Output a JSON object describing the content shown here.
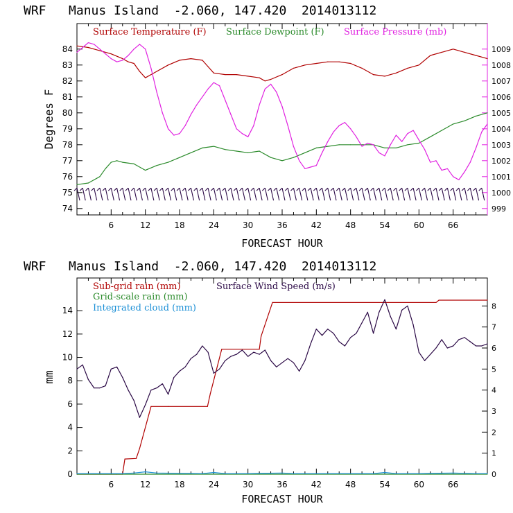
{
  "colors": {
    "temperature": "#b00000",
    "dewpoint": "#2a8a2a",
    "pressure": "#e020e0",
    "subgrid_rain": "#b00000",
    "gridscale_rain": "#2a8a2a",
    "cloud": "#1b8fd6",
    "wind": "#2a0845",
    "barb": "#2a0845"
  },
  "chart_data": [
    {
      "type": "line",
      "title": "WRF   Manus Island  -2.060, 147.420  2014013112",
      "xlabel": "FORECAST HOUR",
      "ylabel": "Degrees F",
      "xlim": [
        0,
        72
      ],
      "ylim": [
        73.6,
        85.6
      ],
      "y2lim": [
        998.6,
        1010.6
      ],
      "xticks": [
        "6",
        "12",
        "18",
        "24",
        "30",
        "36",
        "42",
        "48",
        "54",
        "60",
        "66"
      ],
      "xtick_values": [
        6,
        12,
        18,
        24,
        30,
        36,
        42,
        48,
        54,
        60,
        66
      ],
      "yticks": [
        "74",
        "75",
        "76",
        "77",
        "78",
        "79",
        "80",
        "81",
        "82",
        "83",
        "84"
      ],
      "y2ticks": [
        "999",
        "1000",
        "1001",
        "1002",
        "1003",
        "1004",
        "1005",
        "1006",
        "1007",
        "1008",
        "1009"
      ],
      "legend": [
        "Surface Temperature (F)",
        "Surface Dewpoint (F)",
        "Surface Pressure (mb)"
      ],
      "legend_position": "top",
      "series": [
        {
          "name": "Surface Temperature (F)",
          "axis": "left",
          "x": [
            0,
            2,
            3,
            4,
            6,
            8,
            9,
            10,
            11,
            12,
            14,
            16,
            18,
            20,
            22,
            23,
            24,
            26,
            28,
            30,
            32,
            33,
            34,
            36,
            38,
            40,
            42,
            44,
            46,
            48,
            50,
            52,
            54,
            56,
            58,
            60,
            62,
            64,
            66,
            68,
            70,
            72
          ],
          "y": [
            84.2,
            84.1,
            84.0,
            83.9,
            83.7,
            83.4,
            83.2,
            83.1,
            82.6,
            82.2,
            82.6,
            83.0,
            83.3,
            83.4,
            83.3,
            82.9,
            82.5,
            82.4,
            82.4,
            82.3,
            82.2,
            82.0,
            82.1,
            82.4,
            82.8,
            83.0,
            83.1,
            83.2,
            83.2,
            83.1,
            82.8,
            82.4,
            82.3,
            82.5,
            82.8,
            83.0,
            83.6,
            83.8,
            84.0,
            83.8,
            83.6,
            83.4
          ]
        },
        {
          "name": "Surface Dewpoint (F)",
          "axis": "left",
          "x": [
            0,
            2,
            4,
            5,
            6,
            7,
            8,
            10,
            12,
            14,
            16,
            18,
            20,
            22,
            24,
            26,
            28,
            30,
            32,
            34,
            36,
            38,
            40,
            42,
            44,
            46,
            48,
            50,
            52,
            54,
            56,
            58,
            60,
            62,
            64,
            66,
            68,
            70,
            72
          ],
          "y": [
            75.5,
            75.6,
            76.0,
            76.5,
            76.9,
            77.0,
            76.9,
            76.8,
            76.4,
            76.7,
            76.9,
            77.2,
            77.5,
            77.8,
            77.9,
            77.7,
            77.6,
            77.5,
            77.6,
            77.2,
            77.0,
            77.2,
            77.5,
            77.8,
            77.9,
            78.0,
            78.0,
            78.0,
            78.0,
            77.8,
            77.8,
            78.0,
            78.1,
            78.5,
            78.9,
            79.3,
            79.5,
            79.8,
            80.0
          ]
        },
        {
          "name": "Surface Pressure (mb)",
          "axis": "right",
          "x": [
            0,
            1,
            2,
            3,
            4,
            5,
            6,
            7,
            8,
            9,
            10,
            11,
            12,
            13,
            14,
            15,
            16,
            17,
            18,
            19,
            20,
            21,
            22,
            23,
            24,
            25,
            26,
            27,
            28,
            29,
            30,
            31,
            32,
            33,
            34,
            35,
            36,
            37,
            38,
            39,
            40,
            41,
            42,
            43,
            44,
            45,
            46,
            47,
            48,
            49,
            50,
            51,
            52,
            53,
            54,
            55,
            56,
            57,
            58,
            59,
            60,
            61,
            62,
            63,
            64,
            65,
            66,
            67,
            68,
            69,
            70,
            71,
            72
          ],
          "y": [
            1008.8,
            1009.1,
            1009.4,
            1009.3,
            1009.0,
            1008.7,
            1008.4,
            1008.2,
            1008.3,
            1008.6,
            1009.0,
            1009.3,
            1009.0,
            1007.8,
            1006.3,
            1005.0,
            1004.0,
            1003.6,
            1003.7,
            1004.2,
            1004.9,
            1005.5,
            1006.0,
            1006.5,
            1006.9,
            1006.7,
            1005.8,
            1004.9,
            1004.0,
            1003.7,
            1003.5,
            1004.2,
            1005.5,
            1006.5,
            1006.8,
            1006.3,
            1005.4,
            1004.2,
            1002.9,
            1002.0,
            1001.5,
            1001.6,
            1001.7,
            1002.5,
            1003.2,
            1003.8,
            1004.2,
            1004.4,
            1004.0,
            1003.5,
            1002.9,
            1003.1,
            1003.0,
            1002.5,
            1002.3,
            1003.0,
            1003.6,
            1003.2,
            1003.7,
            1003.9,
            1003.3,
            1002.7,
            1001.9,
            1002.0,
            1001.4,
            1001.5,
            1001.0,
            1000.8,
            1001.3,
            1001.9,
            1002.8,
            1003.8,
            1004.3
          ]
        }
      ],
      "wind_barbs": {
        "x": [
          0,
          1,
          2,
          3,
          4,
          5,
          6,
          7,
          8,
          9,
          10,
          11,
          12,
          13,
          14,
          15,
          16,
          17,
          18,
          19,
          20,
          21,
          22,
          23,
          24,
          25,
          26,
          27,
          28,
          29,
          30,
          31,
          32,
          33,
          34,
          35,
          36,
          37,
          38,
          39,
          40,
          41,
          42,
          43,
          44,
          45,
          46,
          47,
          48,
          49,
          50,
          51,
          52,
          53,
          54,
          55,
          56,
          57,
          58,
          59,
          60,
          61,
          62,
          63,
          64,
          65,
          66,
          67,
          68,
          69,
          70,
          71
        ],
        "y": 74.9
      }
    },
    {
      "type": "line",
      "title": "WRF   Manus Island  -2.060, 147.420  2014013112",
      "xlabel": "FORECAST HOUR",
      "ylabel": "mm",
      "xlim": [
        0,
        72
      ],
      "ylim": [
        0,
        16.8
      ],
      "y2lim": [
        0,
        9.33
      ],
      "xticks": [
        "6",
        "12",
        "18",
        "24",
        "30",
        "36",
        "42",
        "48",
        "54",
        "60",
        "66"
      ],
      "xtick_values": [
        6,
        12,
        18,
        24,
        30,
        36,
        42,
        48,
        54,
        60,
        66
      ],
      "yticks": [
        "0",
        "2",
        "4",
        "6",
        "8",
        "10",
        "12",
        "14"
      ],
      "ytick_values": [
        0,
        2,
        4,
        6,
        8,
        10,
        12,
        14
      ],
      "y2ticks": [
        "0",
        "1",
        "2",
        "3",
        "4",
        "5",
        "6",
        "7",
        "8"
      ],
      "y2tick_values": [
        0,
        1,
        2,
        3,
        4,
        5,
        6,
        7,
        8
      ],
      "legend": [
        "Sub-grid rain (mm)",
        "Surface Wind Speed (m/s)",
        "Grid-scale rain (mm)",
        "Integrated cloud (mm)"
      ],
      "legend_position": "top-left",
      "series": [
        {
          "name": "Sub-grid rain (mm)",
          "axis": "left",
          "x": [
            0,
            7,
            8,
            8.4,
            10.4,
            11,
            13,
            16,
            22.9,
            23.4,
            25.4,
            32,
            32.3,
            34.3,
            63,
            63.5,
            72
          ],
          "y": [
            0,
            0,
            0,
            1.3,
            1.35,
            2.2,
            5.8,
            5.8,
            5.8,
            6.9,
            10.7,
            10.7,
            11.8,
            14.7,
            14.7,
            14.9,
            14.9
          ]
        },
        {
          "name": "Grid-scale rain (mm)",
          "axis": "left",
          "x": [
            0,
            72
          ],
          "y": [
            0,
            0
          ]
        },
        {
          "name": "Integrated cloud (mm)",
          "axis": "left",
          "x": [
            0,
            8,
            10,
            12,
            14,
            22,
            24,
            26,
            30,
            36,
            38,
            42,
            52,
            54,
            56,
            60,
            66,
            70,
            72
          ],
          "y": [
            0.05,
            0.05,
            0.1,
            0.2,
            0.1,
            0.05,
            0.15,
            0.05,
            0.05,
            0.1,
            0.05,
            0.05,
            0.05,
            0.15,
            0.05,
            0.05,
            0.1,
            0.05,
            0.05
          ]
        },
        {
          "name": "Surface Wind Speed (m/s)",
          "axis": "right",
          "x": [
            0,
            1,
            2,
            3,
            4,
            5,
            6,
            7,
            8,
            9,
            10,
            11,
            12,
            13,
            14,
            15,
            16,
            17,
            18,
            19,
            20,
            21,
            22,
            23,
            24,
            25,
            26,
            27,
            28,
            29,
            30,
            31,
            32,
            33,
            34,
            35,
            36,
            37,
            38,
            39,
            40,
            41,
            42,
            43,
            44,
            45,
            46,
            47,
            48,
            49,
            50,
            51,
            52,
            53,
            54,
            55,
            56,
            57,
            58,
            59,
            60,
            61,
            62,
            63,
            64,
            65,
            66,
            67,
            68,
            69,
            70,
            71,
            72
          ],
          "y": [
            5.0,
            5.2,
            4.5,
            4.1,
            4.1,
            4.2,
            5.0,
            5.1,
            4.6,
            4.0,
            3.5,
            2.7,
            3.3,
            4.0,
            4.1,
            4.3,
            3.8,
            4.6,
            4.9,
            5.1,
            5.5,
            5.7,
            6.1,
            5.8,
            4.8,
            5.0,
            5.4,
            5.6,
            5.7,
            5.9,
            5.6,
            5.8,
            5.7,
            5.9,
            5.4,
            5.1,
            5.3,
            5.5,
            5.3,
            4.9,
            5.4,
            6.2,
            6.9,
            6.6,
            6.9,
            6.7,
            6.3,
            6.1,
            6.5,
            6.7,
            7.2,
            7.7,
            6.7,
            7.7,
            8.3,
            7.5,
            6.9,
            7.8,
            8.0,
            7.1,
            5.8,
            5.4,
            5.7,
            6.0,
            6.4,
            6.0,
            6.1,
            6.4,
            6.5,
            6.3,
            6.1,
            6.1,
            6.2
          ]
        }
      ]
    }
  ]
}
